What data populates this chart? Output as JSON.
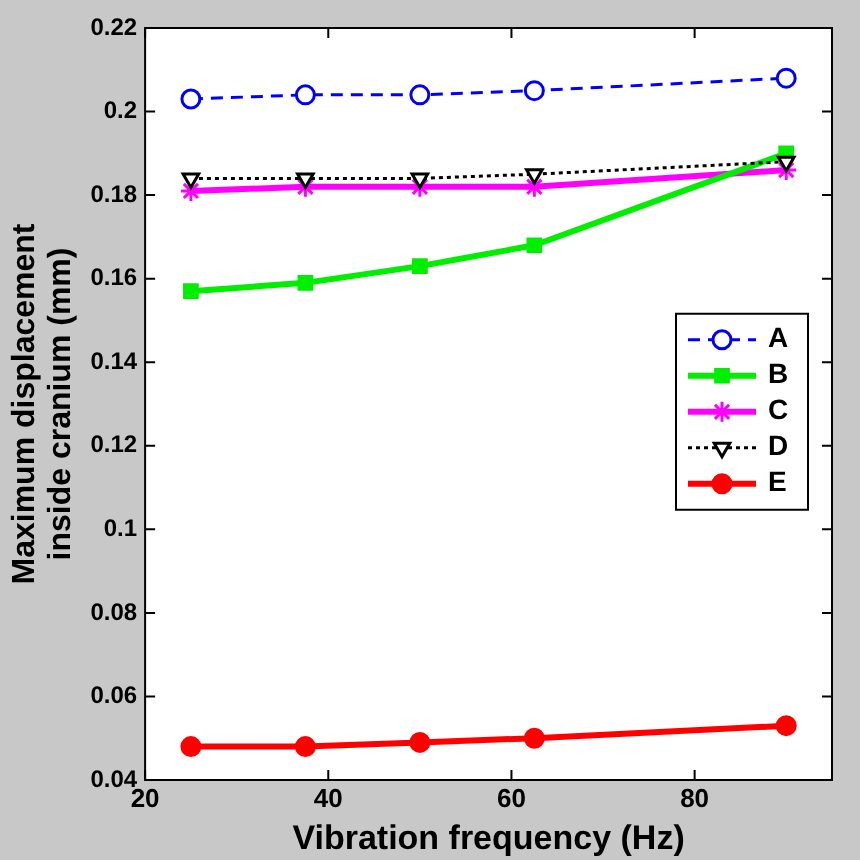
{
  "chart_data": {
    "type": "line",
    "xlabel": "Vibration frequency (Hz)",
    "ylabel": "Maximum displacement\ninside cranium (mm)",
    "x": [
      25,
      37.5,
      50,
      62.5,
      90
    ],
    "xlim": [
      20,
      95
    ],
    "xticks": [
      20,
      40,
      60,
      80
    ],
    "ylim": [
      0.04,
      0.22
    ],
    "yticks": [
      0.04,
      0.06,
      0.08,
      0.1,
      0.12,
      0.14,
      0.16,
      0.18,
      0.2,
      0.22
    ],
    "grid": false,
    "legend": "right",
    "series": [
      {
        "name": "A",
        "color": "#0000ff",
        "marker": "circle",
        "line_style": "dashed",
        "values": [
          0.203,
          0.204,
          0.204,
          0.205,
          0.208
        ]
      },
      {
        "name": "B",
        "color": "#00ee00",
        "marker": "square",
        "line_style": "solid",
        "values": [
          0.157,
          0.159,
          0.163,
          0.168,
          0.19
        ]
      },
      {
        "name": "C",
        "color": "#ff00ff",
        "marker": "cross",
        "line_style": "solid",
        "values": [
          0.181,
          0.182,
          0.182,
          0.182,
          0.186
        ]
      },
      {
        "name": "D",
        "color": "#000000",
        "marker": "triangle",
        "line_style": "dotted",
        "values": [
          0.184,
          0.184,
          0.184,
          0.185,
          0.188
        ]
      },
      {
        "name": "E",
        "color": "#ff0000",
        "marker": "circle",
        "line_style": "solid",
        "values": [
          0.048,
          0.048,
          0.049,
          0.05,
          0.053
        ]
      }
    ]
  }
}
